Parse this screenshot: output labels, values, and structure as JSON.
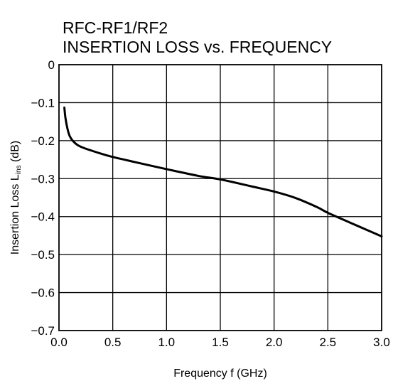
{
  "chart_data": {
    "type": "line",
    "title_line1": "RFC-RF1/RF2",
    "title_line2": "INSERTION LOSS vs. FREQUENCY",
    "xlabel": "Frequency  f (GHz)",
    "ylabel_main": "Insertion Loss  L",
    "ylabel_sub": "ins",
    "ylabel_unit": " (dB)",
    "xlim": [
      0.0,
      3.0
    ],
    "ylim": [
      -0.7,
      0
    ],
    "x_ticks": [
      "0.0",
      "0.5",
      "1.0",
      "1.5",
      "2.0",
      "2.5",
      "3.0"
    ],
    "y_ticks": [
      "0",
      "−0.1",
      "−0.2",
      "−0.3",
      "−0.4",
      "−0.5",
      "−0.6",
      "−0.7"
    ],
    "grid": true,
    "series": [
      {
        "x": [
          0.05,
          0.06,
          0.08,
          0.1,
          0.13,
          0.17,
          0.22,
          0.3,
          0.4,
          0.5,
          0.7,
          1.0,
          1.3,
          1.5,
          1.8,
          2.0,
          2.2,
          2.4,
          2.5,
          2.7,
          3.0
        ],
        "y": [
          -0.113,
          -0.14,
          -0.17,
          -0.188,
          -0.201,
          -0.211,
          -0.218,
          -0.226,
          -0.235,
          -0.243,
          -0.256,
          -0.275,
          -0.293,
          -0.302,
          -0.321,
          -0.334,
          -0.351,
          -0.375,
          -0.39,
          -0.415,
          -0.452
        ]
      }
    ]
  }
}
